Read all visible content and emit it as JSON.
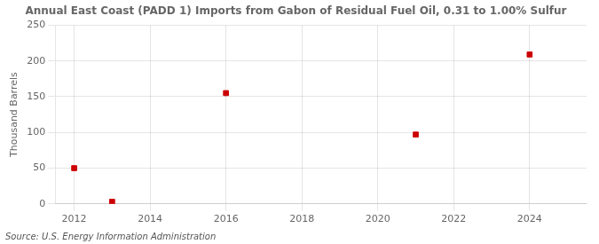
{
  "chart_data": {
    "type": "scatter",
    "title": "Annual East Coast (PADD 1) Imports from Gabon of Residual Fuel Oil, 0.31 to 1.00% Sulfur",
    "ylabel": "Thousand Barrels",
    "annotations": [
      "Source: U.S. Energy Information Administration"
    ],
    "x": [
      2012,
      2013,
      2016,
      2021,
      2024
    ],
    "values": [
      50,
      3,
      155,
      97,
      209
    ],
    "color": "#cc0000",
    "marker": "square",
    "xlim": [
      2011.5,
      2025.5
    ],
    "ylim": [
      0,
      250
    ],
    "xticks": [
      2012,
      2014,
      2016,
      2018,
      2020,
      2022,
      2024
    ],
    "yticks": [
      0,
      50,
      100,
      150,
      200,
      250
    ],
    "grid": true
  }
}
